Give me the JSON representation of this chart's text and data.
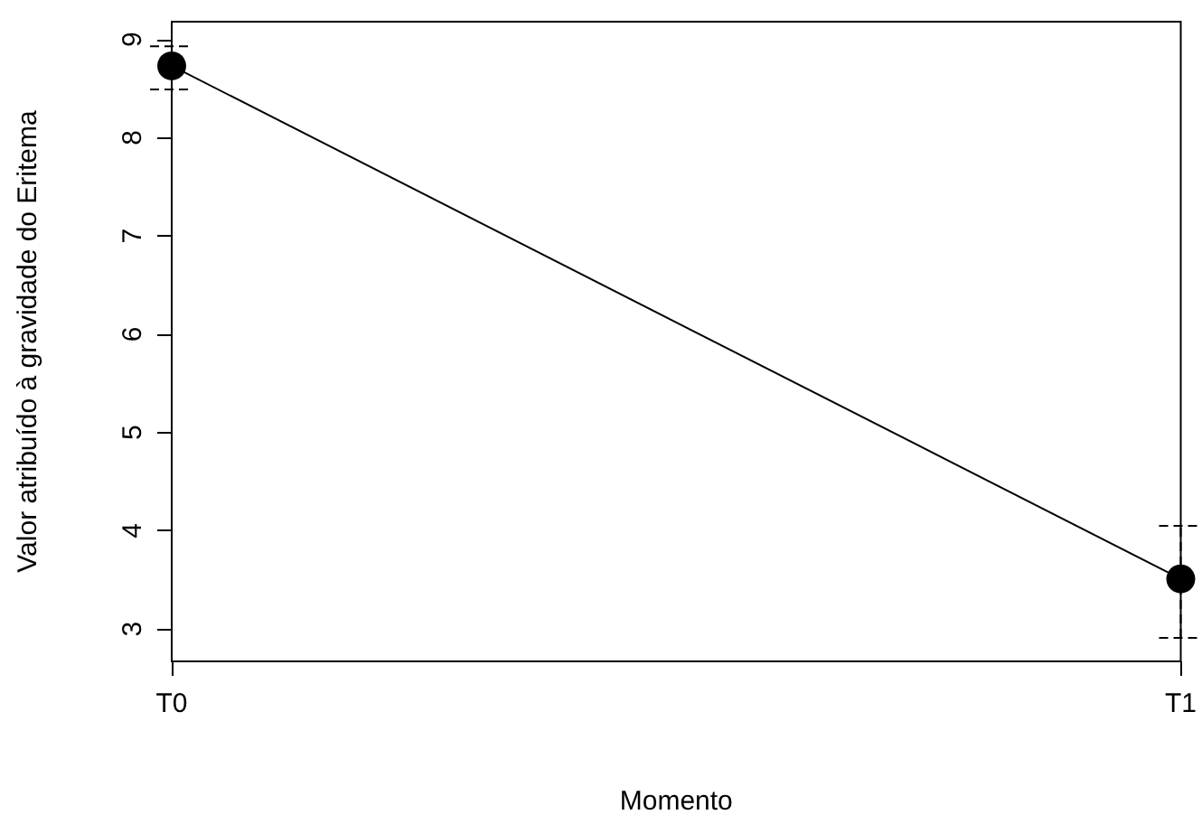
{
  "chart_data": {
    "type": "line",
    "xlabel": "Momento",
    "ylabel": "Valor atribuído à gravidade do Eritema",
    "categories": [
      "T0",
      "T1"
    ],
    "series": [
      {
        "color": "#000000",
        "values": [
          8.73,
          3.51
        ],
        "errors": [
          [
            8.49,
            8.93
          ],
          [
            2.91,
            4.05
          ]
        ]
      }
    ],
    "ylim": [
      2.67,
      9.18
    ],
    "yticks": [
      3,
      4,
      5,
      6,
      7,
      8,
      9
    ],
    "grid": false,
    "marker": "circle",
    "line_style": "solid"
  }
}
